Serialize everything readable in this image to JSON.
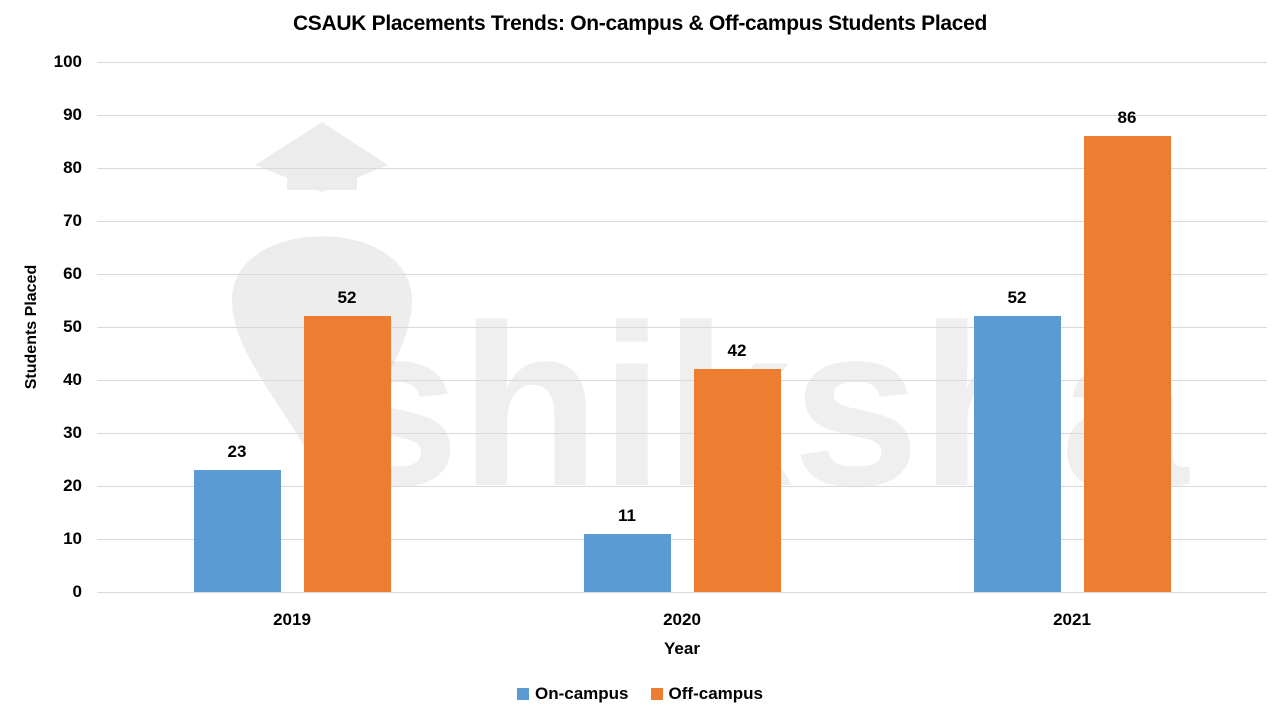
{
  "chart_data": {
    "type": "bar",
    "title": "CSAUK Placements Trends: On-campus & Off-campus Students Placed",
    "xlabel": "Year",
    "ylabel": "Students Placed",
    "categories": [
      "2019",
      "2020",
      "2021"
    ],
    "series": [
      {
        "name": "On-campus",
        "color": "#5b9bd5",
        "values": [
          23,
          11,
          52
        ]
      },
      {
        "name": "Off-campus",
        "color": "#ed7d31",
        "values": [
          52,
          42,
          86
        ]
      }
    ],
    "ylim": [
      0,
      100
    ],
    "yticks": [
      0,
      10,
      20,
      30,
      40,
      50,
      60,
      70,
      80,
      90,
      100
    ],
    "grid": true,
    "legend_position": "bottom",
    "data_labels": true
  },
  "watermark": {
    "text": "shiksha"
  }
}
